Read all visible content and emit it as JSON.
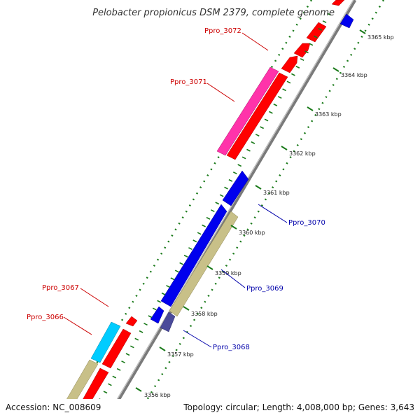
{
  "title": "Pelobacter propionicus DSM 2379, complete genome",
  "footer": {
    "accession": "Accession: NC_008609",
    "topology": "Topology: circular; Length: 4,008,000 bp; Genes: 3,643"
  },
  "colors": {
    "backbone": "#8c8c8c",
    "ruler": "#1a7a1a",
    "label_forward": "#cc0000",
    "label_reverse": "#0000aa",
    "red_gene": "#ff0000",
    "magenta_gene": "#ff33aa",
    "blue_gene": "#0000ee",
    "khaki_gene": "#c8c088",
    "cyan_gene": "#00ccff",
    "slate_gene": "#4a4a9a"
  },
  "ruler_ticks": [
    {
      "label": "3356 kbp"
    },
    {
      "label": "3357 kbp"
    },
    {
      "label": "3358 kbp"
    },
    {
      "label": "3359 kbp"
    },
    {
      "label": "3360 kbp"
    },
    {
      "label": "3361 kbp"
    },
    {
      "label": "3362 kbp"
    },
    {
      "label": "3363 kbp"
    },
    {
      "label": "3364 kbp"
    },
    {
      "label": "3365 kbp"
    }
  ],
  "gene_labels": {
    "g3072": "Ppro_3072",
    "g3071": "Ppro_3071",
    "g3070": "Ppro_3070",
    "g3069": "Ppro_3069",
    "g3068": "Ppro_3068",
    "g3067": "Ppro_3067",
    "g3066": "Ppro_3066"
  }
}
